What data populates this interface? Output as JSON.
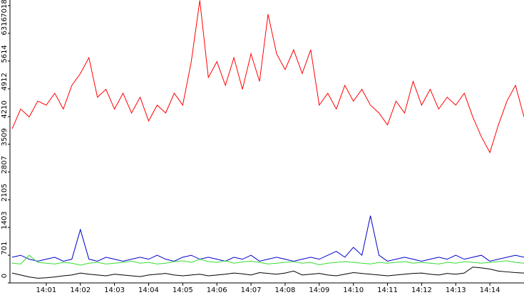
{
  "chart_data": {
    "type": "line",
    "x": [
      0,
      0.25,
      0.5,
      0.75,
      1,
      1.25,
      1.5,
      1.75,
      2,
      2.25,
      2.5,
      2.75,
      3,
      3.25,
      3.5,
      3.75,
      4,
      4.25,
      4.5,
      4.75,
      5,
      5.25,
      5.5,
      5.75,
      6,
      6.25,
      6.5,
      6.75,
      7,
      7.25,
      7.5,
      7.75,
      8,
      8.25,
      8.5,
      8.75,
      9,
      9.25,
      9.5,
      9.75,
      10,
      10.25,
      10.5,
      10.75,
      11,
      11.25,
      11.5,
      11.75,
      12,
      12.25,
      12.5,
      12.75,
      13,
      13.25,
      13.5,
      13.75,
      14,
      14.25,
      14.5,
      14.75,
      15
    ],
    "series": [
      {
        "color": "#ff0000",
        "values": [
          3900,
          4400,
          4200,
          4600,
          4500,
          4800,
          4400,
          5000,
          5300,
          5700,
          4700,
          4900,
          4400,
          4800,
          4300,
          4700,
          4100,
          4500,
          4300,
          4800,
          4500,
          5600,
          7150,
          5200,
          5600,
          5000,
          5700,
          4900,
          5800,
          5100,
          6800,
          5800,
          5400,
          5900,
          5300,
          5900,
          4500,
          4800,
          4400,
          5000,
          4600,
          4900,
          4500,
          4300,
          4000,
          4600,
          4300,
          5100,
          4500,
          4900,
          4400,
          4700,
          4500,
          4800,
          4200,
          3700,
          3300,
          4000,
          4600,
          5000,
          4200
        ]
      },
      {
        "color": "#0000cc",
        "values": [
          650,
          700,
          600,
          550,
          600,
          650,
          550,
          600,
          1350,
          600,
          550,
          650,
          600,
          550,
          600,
          650,
          600,
          700,
          600,
          550,
          650,
          700,
          600,
          650,
          600,
          550,
          650,
          600,
          700,
          550,
          600,
          650,
          600,
          550,
          600,
          650,
          600,
          700,
          800,
          650,
          900,
          700,
          1700,
          700,
          550,
          600,
          650,
          600,
          550,
          600,
          650,
          600,
          700,
          600,
          650,
          700,
          550,
          600,
          650,
          700,
          650
        ]
      },
      {
        "color": "#33dd33",
        "values": [
          500,
          480,
          700,
          520,
          500,
          480,
          520,
          500,
          450,
          500,
          520,
          480,
          500,
          520,
          550,
          500,
          520,
          480,
          500,
          540,
          560,
          520,
          600,
          540,
          520,
          560,
          500,
          530,
          550,
          520,
          480,
          500,
          520,
          540,
          500,
          520,
          460,
          500,
          520,
          540,
          520,
          500,
          480,
          520,
          500,
          520,
          540,
          500,
          520,
          500,
          480,
          520,
          500,
          540,
          520,
          500,
          520,
          540,
          560,
          520,
          500
        ]
      },
      {
        "color": "#000000",
        "values": [
          250,
          200,
          150,
          120,
          130,
          150,
          180,
          200,
          250,
          220,
          200,
          180,
          220,
          200,
          180,
          160,
          200,
          220,
          240,
          200,
          180,
          200,
          220,
          180,
          200,
          220,
          250,
          230,
          200,
          260,
          240,
          220,
          250,
          300,
          200,
          220,
          240,
          200,
          180,
          220,
          260,
          240,
          220,
          200,
          180,
          200,
          220,
          240,
          250,
          220,
          200,
          240,
          220,
          250,
          400,
          380,
          350,
          300,
          280,
          260,
          250
        ]
      }
    ],
    "xlim": [
      0,
      15
    ],
    "xticks": [
      {
        "value": 1,
        "label": "14:01"
      },
      {
        "value": 2,
        "label": "14:02"
      },
      {
        "value": 3,
        "label": "14:03"
      },
      {
        "value": 4,
        "label": "14:04"
      },
      {
        "value": 5,
        "label": "14:05"
      },
      {
        "value": 6,
        "label": "14:06"
      },
      {
        "value": 7,
        "label": "14:07"
      },
      {
        "value": 8,
        "label": "14:08"
      },
      {
        "value": 9,
        "label": "14:09"
      },
      {
        "value": 10,
        "label": "14:10"
      },
      {
        "value": 11,
        "label": "14:11"
      },
      {
        "value": 12,
        "label": "14:12"
      },
      {
        "value": 13,
        "label": "14:13"
      },
      {
        "value": 14,
        "label": "14:14"
      }
    ],
    "ylim": [
      0,
      7160
    ],
    "yticks": [
      0,
      701,
      1403,
      2105,
      2807,
      3509,
      4210,
      4912,
      5614,
      6316,
      7018
    ]
  }
}
